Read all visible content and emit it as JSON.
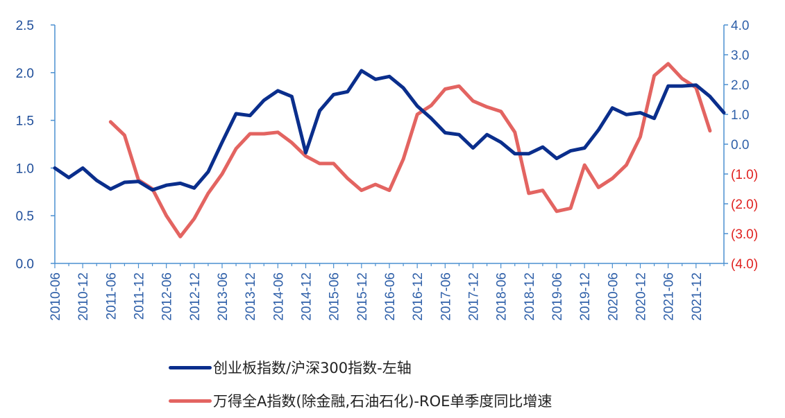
{
  "chart_data": {
    "type": "line",
    "left_axis": {
      "ticks": [
        "0.0",
        "0.5",
        "1.0",
        "1.5",
        "2.0",
        "2.5"
      ],
      "values": [
        0,
        0.5,
        1.0,
        1.5,
        2.0,
        2.5
      ],
      "ylim": [
        0,
        2.5
      ],
      "color": "#1F4E9A"
    },
    "right_axis": {
      "ticks": [
        "(4.0)",
        "(3.0)",
        "(2.0)",
        "(1.0)",
        "0.0",
        "1.0",
        "2.0",
        "3.0",
        "4.0"
      ],
      "values": [
        -4,
        -3,
        -2,
        -1,
        0,
        1,
        2,
        3,
        4
      ],
      "ylim": [
        -4,
        4
      ],
      "axis_color": "#4A8FD0",
      "positive_color": "#2E5FA8",
      "negative_color": "#E0201E"
    },
    "x_labels": [
      "2010-06",
      "2010-12",
      "2011-06",
      "2011-12",
      "2012-06",
      "2012-12",
      "2013-06",
      "2013-12",
      "2014-06",
      "2014-12",
      "2015-06",
      "2015-12",
      "2016-06",
      "2016-12",
      "2017-06",
      "2017-12",
      "2018-06",
      "2018-12",
      "2019-06",
      "2019-12",
      "2020-06",
      "2020-12",
      "2021-06",
      "2021-12"
    ],
    "x_label_color": "#2E5FA8",
    "series": [
      {
        "name": "创业板指数/沪深300指数-左轴",
        "axis": "left",
        "color": "#0A2E8C",
        "start_index": 0,
        "values": [
          1.0,
          0.9,
          1.0,
          0.87,
          0.78,
          0.85,
          0.86,
          0.77,
          0.82,
          0.84,
          0.79,
          0.96,
          1.27,
          1.57,
          1.55,
          1.71,
          1.81,
          1.75,
          1.16,
          1.6,
          1.77,
          1.8,
          2.02,
          1.93,
          1.96,
          1.84,
          1.65,
          1.52,
          1.37,
          1.35,
          1.21,
          1.35,
          1.27,
          1.15,
          1.15,
          1.22,
          1.1,
          1.18,
          1.21,
          1.4,
          1.63,
          1.56,
          1.58,
          1.52,
          1.86,
          1.86,
          1.87,
          1.75,
          1.58
        ]
      },
      {
        "name": "万得全A指数(除金融,石油石化)-ROE单季度同比增速",
        "axis": "right",
        "color": "#E36461",
        "start_index": 4,
        "values": [
          0.75,
          0.3,
          -1.2,
          -1.5,
          -2.4,
          -3.1,
          -2.5,
          -1.65,
          -1.0,
          -0.15,
          0.35,
          0.35,
          0.4,
          0.05,
          -0.4,
          -0.65,
          -0.65,
          -1.15,
          -1.55,
          -1.35,
          -1.55,
          -0.5,
          1.0,
          1.3,
          1.85,
          1.95,
          1.45,
          1.25,
          1.1,
          0.4,
          -1.65,
          -1.55,
          -2.25,
          -2.15,
          -0.7,
          -1.45,
          -1.15,
          -0.7,
          0.25,
          2.3,
          2.7,
          2.2,
          1.9,
          0.45
        ]
      }
    ],
    "legend": [
      {
        "label": "创业板指数/沪深300指数-左轴",
        "color": "#0A2E8C"
      },
      {
        "label": "万得全A指数(除金融,石油石化)-ROE单季度同比增速",
        "color": "#E36461"
      }
    ]
  }
}
